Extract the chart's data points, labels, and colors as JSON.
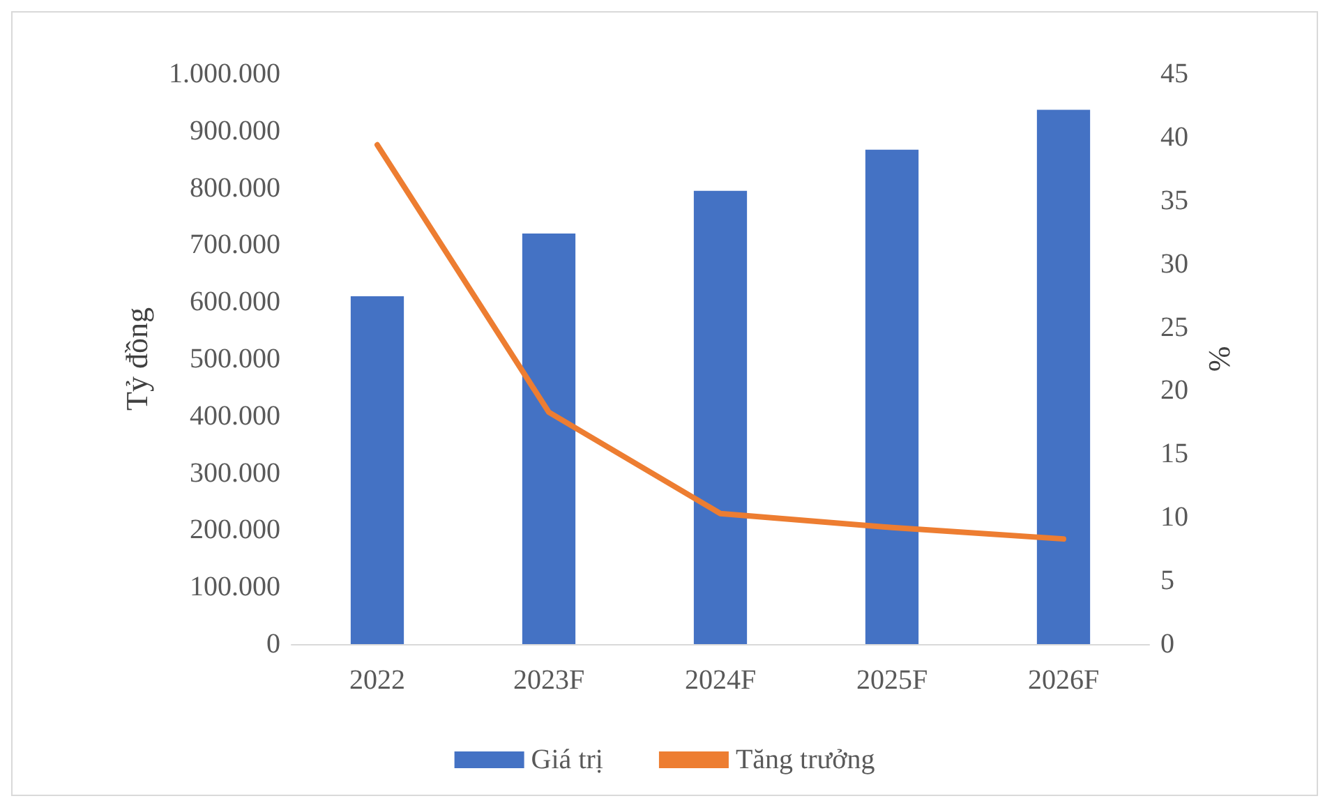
{
  "chart_data": {
    "type": "bar",
    "ylabel": "Tỷ đồng",
    "y2label": "%",
    "categories": [
      "2022",
      "2023F",
      "2024F",
      "2025F",
      "2026F"
    ],
    "series": [
      {
        "name": "Giá trị",
        "color": "#4472c4",
        "values": [
          610000,
          720000,
          795000,
          867000,
          937000
        ]
      },
      {
        "name": "Tăng trưởng",
        "type": "line",
        "axis": "y2",
        "color": "#ed7d31",
        "values": [
          39.4,
          18.3,
          10.3,
          9.2,
          8.3
        ]
      }
    ],
    "ylim": [
      0,
      1000000
    ],
    "yticks": [
      {
        "value": 0,
        "label": "0"
      },
      {
        "value": 100000,
        "label": "100.000"
      },
      {
        "value": 200000,
        "label": "200.000"
      },
      {
        "value": 300000,
        "label": "300.000"
      },
      {
        "value": 400000,
        "label": "400.000"
      },
      {
        "value": 500000,
        "label": "500.000"
      },
      {
        "value": 600000,
        "label": "600.000"
      },
      {
        "value": 700000,
        "label": "700.000"
      },
      {
        "value": 800000,
        "label": "800.000"
      },
      {
        "value": 900000,
        "label": "900.000"
      },
      {
        "value": 1000000,
        "label": "1.000.000"
      }
    ],
    "y2lim": [
      0,
      45
    ],
    "y2ticks": [
      0,
      5,
      10,
      15,
      20,
      25,
      30,
      35,
      40,
      45
    ],
    "legend": "bottom",
    "grid": false,
    "marker": "none",
    "line_style": "solid"
  }
}
